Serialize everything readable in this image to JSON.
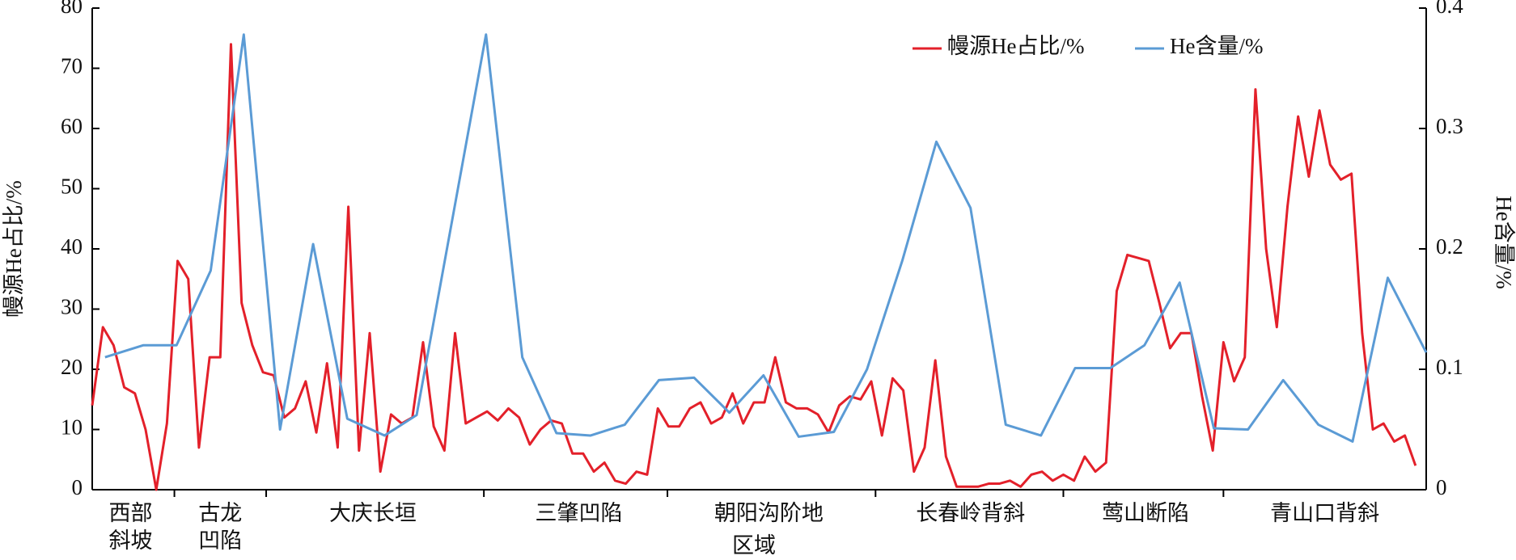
{
  "chart_data": {
    "type": "line",
    "xlabel": "区域",
    "ylabel": "幔源He占比/%",
    "y2label": "He含量/%",
    "regions": [
      [
        "西部",
        "斜坡"
      ],
      [
        "古龙",
        "凹陷"
      ],
      [
        "大庆长垣"
      ],
      [
        "三肇凹陷"
      ],
      [
        "朝阳沟阶地"
      ],
      [
        "长春岭背斜"
      ],
      [
        "莺山断陷"
      ],
      [
        "青山口背斜"
      ]
    ],
    "xlim": [
      0,
      125
    ],
    "ylim": [
      0,
      80
    ],
    "yticks": [
      0,
      10,
      20,
      30,
      40,
      50,
      60,
      70,
      80
    ],
    "y2lim": [
      0,
      0.4
    ],
    "y2ticks": [
      0,
      0.1,
      0.2,
      0.3,
      0.4
    ],
    "legend": "upper right",
    "series": [
      {
        "name": "幔源He占比/%",
        "color": "#e3202a",
        "x": [
          0,
          1,
          2,
          3,
          4,
          5,
          6,
          7,
          8,
          9,
          10,
          11,
          12,
          13,
          14,
          15,
          16,
          17,
          18,
          19,
          20,
          21,
          22,
          23,
          24,
          25,
          26,
          27,
          28,
          29,
          30,
          31,
          32,
          33,
          34,
          35,
          36,
          37,
          38,
          39,
          40,
          41,
          42,
          43,
          44,
          45,
          46,
          47,
          48,
          49,
          50,
          51,
          52,
          53,
          54,
          55,
          56,
          57,
          58,
          59,
          60,
          61,
          62,
          63,
          64,
          65,
          66,
          67,
          68,
          69,
          70,
          71,
          72,
          73,
          74,
          75,
          76,
          77,
          78,
          79,
          80,
          81,
          82,
          83,
          84,
          85,
          86,
          87,
          88,
          89,
          90,
          91,
          92,
          93,
          94,
          95,
          96,
          97,
          98,
          99,
          100,
          101,
          102,
          103,
          104,
          105,
          106,
          107,
          108,
          109,
          110,
          111,
          112,
          113,
          114,
          115,
          116,
          117,
          118,
          119,
          120,
          121,
          122,
          123,
          124
        ],
        "values": [
          14,
          27,
          24,
          17,
          16,
          10,
          0,
          11,
          38,
          35,
          7,
          22,
          22,
          74,
          31,
          24,
          19.5,
          19,
          12,
          13.5,
          18,
          9.5,
          21,
          7,
          47,
          6.5,
          26,
          3,
          12.5,
          11,
          12,
          24.5,
          10.5,
          6.5,
          26,
          11,
          12,
          13,
          11.5,
          13.5,
          12,
          7.5,
          10,
          11.5,
          11,
          6,
          6,
          3,
          4.5,
          1.5,
          1,
          3,
          2.5,
          13.5,
          10.5,
          10.5,
          13.5,
          14.5,
          11,
          12,
          16,
          11,
          14.5,
          14.5,
          22,
          14.5,
          13.5,
          13.5,
          12.5,
          9.5,
          14,
          15.5,
          15,
          18,
          9,
          18.5,
          16.5,
          3,
          7,
          21.5,
          5.5,
          0.5,
          0.5,
          0.5,
          1,
          1,
          1.5,
          0.5,
          2.5,
          3,
          1.5,
          2.5,
          1.5,
          5.5,
          3,
          4.5,
          33,
          39,
          38.5,
          38,
          31,
          23.5,
          26,
          26,
          15.5,
          6.5,
          24.5,
          18,
          22,
          66.5,
          40,
          27,
          47,
          62,
          52,
          63,
          54,
          51.5,
          52.5,
          26,
          10,
          11,
          8,
          9,
          4
        ]
      },
      {
        "name": "He含量/%",
        "color": "#5b9bd5",
        "axis": "y2",
        "x": [
          1.2,
          4.8,
          7.9,
          11.1,
          14.2,
          17.6,
          20.7,
          23.9,
          27.4,
          30.4,
          36.9,
          40.3,
          43.5,
          46.7,
          49.9,
          53.1,
          56.4,
          59.7,
          62.9,
          66.2,
          69.5,
          72.6,
          75.9,
          79.1,
          82.3,
          85.6,
          88.9,
          92.1,
          95.4,
          98.6,
          101.9,
          105.1,
          108.3,
          111.6,
          114.9,
          118.1,
          121.4,
          125
        ],
        "values": [
          0.11,
          0.12,
          0.12,
          0.182,
          0.378,
          0.05,
          0.204,
          0.059,
          0.045,
          0.062,
          0.378,
          0.11,
          0.047,
          0.045,
          0.054,
          0.091,
          0.093,
          0.064,
          0.095,
          0.044,
          0.048,
          0.1,
          0.19,
          0.289,
          0.234,
          0.054,
          0.045,
          0.101,
          0.101,
          0.12,
          0.172,
          0.051,
          0.05,
          0.091,
          0.054,
          0.04,
          0.176,
          0.114
        ]
      }
    ]
  }
}
